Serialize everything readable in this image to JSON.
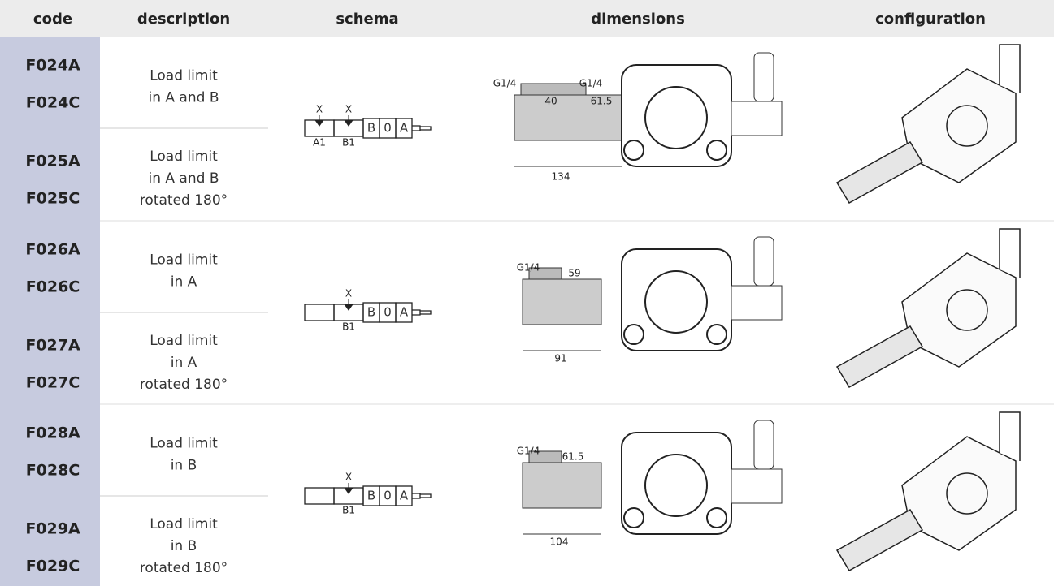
{
  "header": [
    "code",
    "description",
    "schema",
    "dimensions",
    "configuration"
  ],
  "groups": [
    {
      "rows": [
        {
          "codes": [
            "F024A",
            "F024C"
          ],
          "description": [
            "Load limit",
            "in A and B"
          ]
        },
        {
          "codes": [
            "F025A",
            "F025C"
          ],
          "description": [
            "Load limit",
            "in A and B",
            "rotated 180°"
          ]
        }
      ],
      "schema": {
        "ports": [
          {
            "mark": "X",
            "label": "A1"
          },
          {
            "mark": "X",
            "label": "B1"
          }
        ],
        "spool": [
          "B",
          "0",
          "A"
        ]
      },
      "dimensions": [
        "G1/4",
        "40",
        "G1/4",
        "61.5",
        "134"
      ]
    },
    {
      "rows": [
        {
          "codes": [
            "F026A",
            "F026C"
          ],
          "description": [
            "Load limit",
            "in A"
          ]
        },
        {
          "codes": [
            "F027A",
            "F027C"
          ],
          "description": [
            "Load limit",
            "in A",
            "rotated 180°"
          ]
        }
      ],
      "schema": {
        "ports": [
          {
            "mark": "X",
            "label": "B1"
          }
        ],
        "spool": [
          "B",
          "0",
          "A"
        ]
      },
      "dimensions": [
        "G1/4",
        "59",
        "91"
      ]
    },
    {
      "rows": [
        {
          "codes": [
            "F028A",
            "F028C"
          ],
          "description": [
            "Load limit",
            "in B"
          ]
        },
        {
          "codes": [
            "F029A",
            "F029C"
          ],
          "description": [
            "Load limit",
            "in B",
            "rotated 180°"
          ]
        }
      ],
      "schema": {
        "ports": [
          {
            "mark": "X",
            "label": "B1"
          }
        ],
        "spool": [
          "B",
          "0",
          "A"
        ]
      },
      "dimensions": [
        "G1/4",
        "61.5",
        "104"
      ]
    }
  ]
}
